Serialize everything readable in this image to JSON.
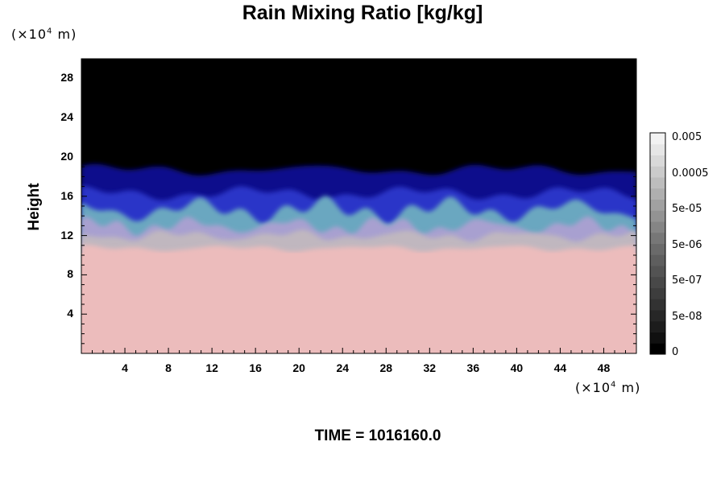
{
  "chart_data": {
    "type": "heatmap",
    "title": "Rain Mixing Ratio [kg/kg]",
    "ylabel": "Height",
    "xlabel": "",
    "x_unit": {
      "pre": "(×10",
      "exp": "4",
      "post": " m)"
    },
    "y_unit": {
      "pre": "(×10",
      "exp": "4",
      "post": " m)"
    },
    "xlim": [
      0,
      51
    ],
    "ylim": [
      0,
      30
    ],
    "x_ticks": [
      4,
      8,
      12,
      16,
      20,
      24,
      28,
      32,
      36,
      40,
      44,
      48
    ],
    "y_ticks": [
      4,
      8,
      12,
      16,
      20,
      24,
      28
    ],
    "x_tick_labels": [
      "4",
      "8",
      "12",
      "16",
      "20",
      "24",
      "28",
      "32",
      "36",
      "40",
      "44",
      "48"
    ],
    "y_tick_labels": [
      "4",
      "8",
      "12",
      "16",
      "20",
      "24",
      "28"
    ],
    "footer": "TIME = 1016160.0",
    "colorbar": {
      "labels": [
        "0.005",
        "0.0005",
        "5e-05",
        "5e-06",
        "5e-07",
        "5e-08",
        "0"
      ],
      "colors": [
        "#000000",
        "#101010",
        "#1c1c1c",
        "#272727",
        "#323232",
        "#3d3d3d",
        "#484848",
        "#535353",
        "#5e5e5e",
        "#6a6a6a",
        "#777777",
        "#858585",
        "#939393",
        "#a1a1a1",
        "#afafaf",
        "#bdbdbd",
        "#cbcbcb",
        "#d9d9d9",
        "#e6e6e6",
        "#f2f2f2"
      ]
    },
    "layers": [
      {
        "name": "no rain aloft",
        "color": "#000000"
      },
      {
        "name": "upper blue",
        "color": "#0a0c8c"
      },
      {
        "name": "mid blue",
        "color": "#2a36c8"
      },
      {
        "name": "teal",
        "color": "#6aa7c0"
      },
      {
        "name": "lavender",
        "color": "#a8a0d0"
      },
      {
        "name": "grey",
        "color": "#c0b7bf"
      },
      {
        "name": "pink",
        "color": "#ecbcbc"
      }
    ]
  }
}
